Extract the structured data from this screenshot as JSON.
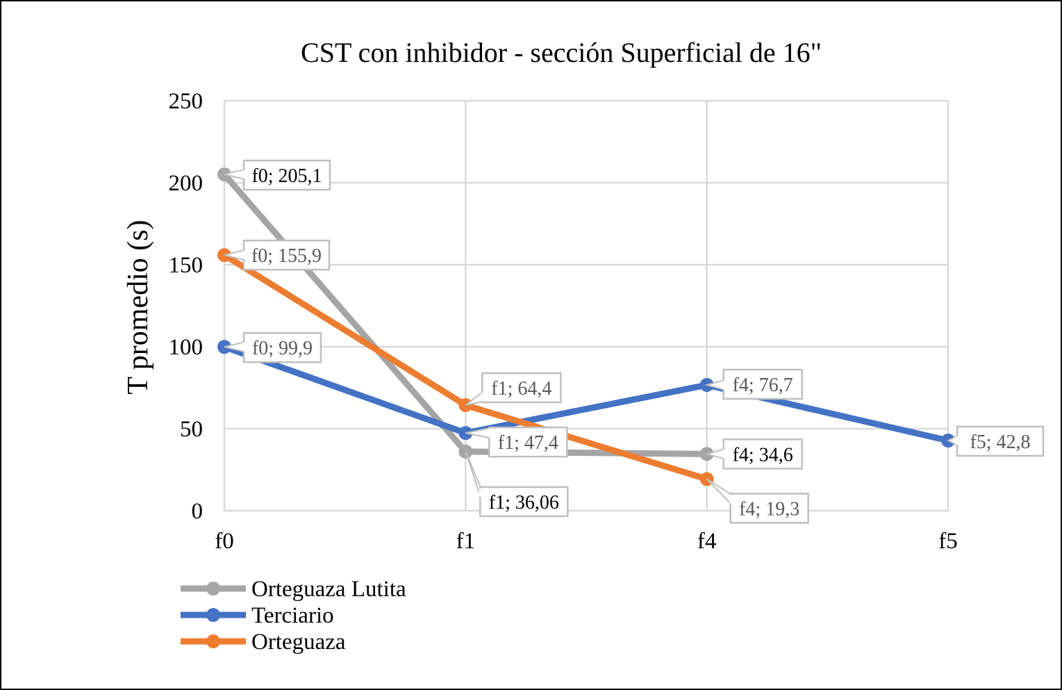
{
  "chart_data": {
    "type": "line",
    "title": "CST con inhibidor - sección Superficial de 16\"",
    "xlabel": "",
    "ylabel": "T promedio (s)",
    "categories": [
      "f0",
      "f1",
      "f4",
      "f5"
    ],
    "ylim": [
      0,
      250
    ],
    "yticks": [
      0,
      50,
      100,
      150,
      200,
      250
    ],
    "grid": true,
    "legend_position": "bottom-left",
    "series": [
      {
        "name": "Orteguaza Lutita",
        "color": "#A5A5A5",
        "values": [
          205.1,
          36.06,
          34.6,
          null
        ],
        "labels": [
          "f0; 205,1",
          "f1; 36,06",
          "f4; 34,6",
          null
        ],
        "label_color": "#000000"
      },
      {
        "name": "Terciario",
        "color": "#4472C4",
        "values": [
          99.9,
          47.4,
          76.7,
          42.8
        ],
        "labels": [
          "f0; 99,9",
          "f1; 47,4",
          "f4; 76,7",
          "f5; 42,8"
        ],
        "label_color": "#595959"
      },
      {
        "name": "Orteguaza",
        "color": "#ED7D31",
        "values": [
          155.9,
          64.4,
          19.3,
          null
        ],
        "labels": [
          "f0; 155,9",
          "f1; 64,4",
          "f4; 19,3",
          null
        ],
        "label_color": "#595959"
      }
    ]
  }
}
